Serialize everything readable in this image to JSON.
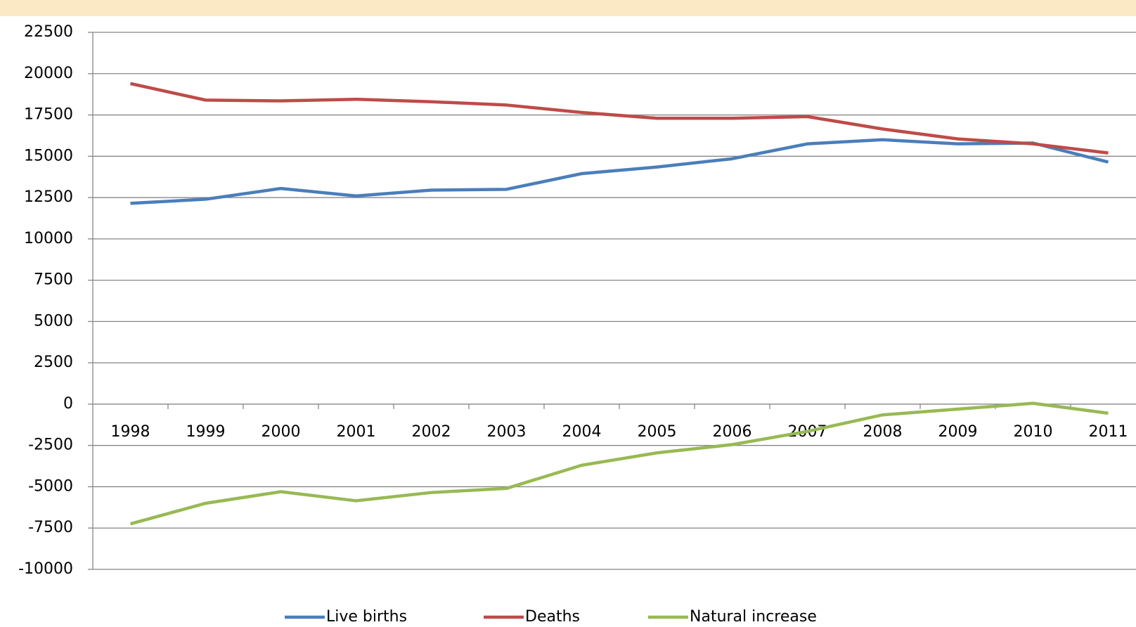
{
  "chart_data": {
    "type": "line",
    "categories": [
      "1998",
      "1999",
      "2000",
      "2001",
      "2002",
      "2003",
      "2004",
      "2005",
      "2006",
      "2007",
      "2008",
      "2009",
      "2010",
      "2011"
    ],
    "series": [
      {
        "name": "Live births",
        "color": "#4a7ebb",
        "values": [
          12150,
          12400,
          13050,
          12600,
          12950,
          13000,
          13950,
          14350,
          14850,
          15750,
          16000,
          15750,
          15800,
          14650
        ]
      },
      {
        "name": "Deaths",
        "color": "#be4b48",
        "values": [
          19400,
          18400,
          18350,
          18450,
          18300,
          18100,
          17650,
          17300,
          17300,
          17400,
          16650,
          16050,
          15750,
          15200
        ]
      },
      {
        "name": "Natural increase",
        "color": "#98b954",
        "values": [
          -7250,
          -6000,
          -5300,
          -5850,
          -5350,
          -5100,
          -3700,
          -2950,
          -2450,
          -1650,
          -650,
          -300,
          50,
          -550
        ]
      }
    ],
    "ylim": [
      -10000,
      22500
    ],
    "yticks": [
      -10000,
      -7500,
      -5000,
      -2500,
      0,
      2500,
      5000,
      7500,
      10000,
      12500,
      15000,
      17500,
      20000,
      22500
    ],
    "grid": true,
    "legend": "bottom"
  }
}
